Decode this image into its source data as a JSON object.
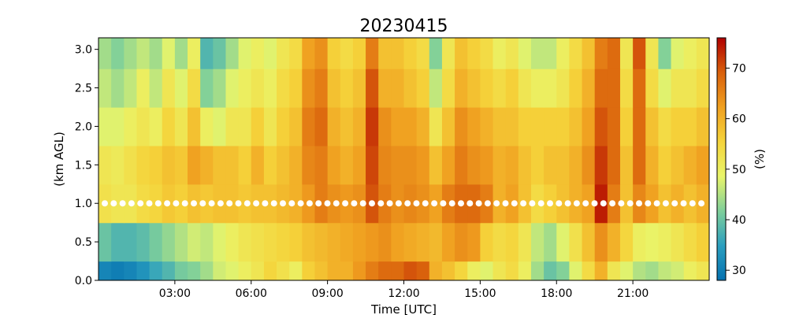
{
  "chart_data": {
    "type": "heatmap",
    "title": "20230415",
    "xlabel": "Time [UTC]",
    "ylabel": "(km AGL)",
    "colorbar_label": "(%)",
    "xlim": [
      0,
      24
    ],
    "ylim": [
      0,
      3.15
    ],
    "clim": [
      28,
      76
    ],
    "x_ticks": [
      3,
      6,
      9,
      12,
      15,
      18,
      21
    ],
    "x_tick_labels": [
      "03:00",
      "06:00",
      "09:00",
      "12:00",
      "15:00",
      "18:00",
      "21:00"
    ],
    "y_ticks": [
      0,
      0.5,
      1.0,
      1.5,
      2.0,
      2.5,
      3.0
    ],
    "y_tick_labels": [
      "0.0",
      "0.5",
      "1.0",
      "1.5",
      "2.0",
      "2.5",
      "3.0"
    ],
    "colorbar_ticks": [
      30,
      40,
      50,
      60,
      70
    ],
    "colorbar_tick_labels": [
      "30",
      "40",
      "50",
      "60",
      "70"
    ],
    "colormap": [
      "#0571b0",
      "#2b9fbf",
      "#7fcf9a",
      "#e9f56a",
      "#f5d43b",
      "#f0a020",
      "#d9600c",
      "#b00000"
    ],
    "marker_line": {
      "y": 1.0,
      "color": "#ffffff"
    },
    "rows_km": [
      0.0,
      0.5,
      1.0,
      1.5,
      2.0,
      2.5,
      3.0
    ],
    "columns_hours": [
      0.25,
      0.75,
      1.25,
      1.75,
      2.25,
      2.75,
      3.25,
      3.75,
      4.25,
      4.75,
      5.25,
      5.75,
      6.25,
      6.75,
      7.25,
      7.75,
      8.25,
      8.75,
      9.25,
      9.75,
      10.25,
      10.75,
      11.25,
      11.75,
      12.25,
      12.75,
      13.25,
      13.75,
      14.25,
      14.75,
      15.25,
      15.75,
      16.25,
      16.75,
      17.25,
      17.75,
      18.25,
      18.75,
      19.25,
      19.75,
      20.25,
      20.75,
      21.25,
      21.75,
      22.25,
      22.75,
      23.25,
      23.75
    ],
    "values_percent": [
      [
        31,
        30,
        31,
        33,
        36,
        38,
        41,
        42,
        44,
        47,
        48,
        50,
        52,
        55,
        53,
        50,
        56,
        58,
        60,
        60,
        63,
        66,
        68,
        68,
        70,
        69,
        60,
        58,
        55,
        50,
        48,
        52,
        54,
        50,
        44,
        40,
        42,
        48,
        54,
        60,
        52,
        48,
        45,
        44,
        46,
        47,
        50,
        52
      ],
      [
        40,
        38,
        38,
        39,
        41,
        43,
        45,
        47,
        46,
        48,
        50,
        52,
        53,
        54,
        55,
        56,
        58,
        59,
        60,
        61,
        62,
        63,
        64,
        62,
        61,
        60,
        59,
        62,
        64,
        63,
        56,
        54,
        55,
        52,
        46,
        44,
        48,
        53,
        58,
        64,
        60,
        55,
        50,
        49,
        50,
        52,
        54,
        56
      ],
      [
        53,
        52,
        52,
        54,
        55,
        57,
        56,
        58,
        57,
        58,
        58,
        57,
        58,
        58,
        59,
        60,
        63,
        66,
        64,
        63,
        64,
        70,
        66,
        64,
        65,
        64,
        62,
        66,
        68,
        68,
        66,
        60,
        62,
        58,
        54,
        56,
        58,
        60,
        62,
        74,
        66,
        58,
        65,
        62,
        58,
        60,
        58,
        60
      ],
      [
        52,
        51,
        53,
        55,
        56,
        58,
        57,
        62,
        60,
        58,
        58,
        56,
        60,
        56,
        58,
        60,
        65,
        66,
        62,
        60,
        62,
        71,
        65,
        64,
        64,
        63,
        58,
        62,
        66,
        64,
        63,
        60,
        61,
        58,
        56,
        58,
        58,
        60,
        64,
        72,
        68,
        58,
        68,
        60,
        56,
        58,
        60,
        62
      ],
      [
        48,
        48,
        50,
        52,
        50,
        55,
        52,
        58,
        50,
        48,
        52,
        52,
        56,
        52,
        56,
        58,
        66,
        68,
        60,
        58,
        60,
        72,
        64,
        62,
        62,
        60,
        52,
        58,
        64,
        62,
        60,
        58,
        58,
        56,
        56,
        56,
        56,
        58,
        62,
        70,
        68,
        56,
        68,
        58,
        54,
        56,
        56,
        58
      ],
      [
        46,
        44,
        46,
        50,
        46,
        52,
        48,
        54,
        42,
        44,
        48,
        50,
        52,
        50,
        54,
        56,
        64,
        66,
        58,
        56,
        58,
        70,
        60,
        60,
        58,
        56,
        46,
        54,
        60,
        58,
        56,
        54,
        56,
        52,
        50,
        50,
        52,
        56,
        60,
        68,
        68,
        54,
        68,
        54,
        48,
        52,
        52,
        54
      ],
      [
        44,
        42,
        44,
        46,
        44,
        48,
        44,
        50,
        38,
        40,
        44,
        48,
        50,
        48,
        52,
        54,
        62,
        64,
        56,
        54,
        56,
        66,
        58,
        58,
        56,
        54,
        42,
        52,
        58,
        56,
        54,
        50,
        52,
        48,
        46,
        46,
        50,
        54,
        58,
        66,
        68,
        52,
        70,
        52,
        42,
        48,
        50,
        52
      ]
    ]
  }
}
